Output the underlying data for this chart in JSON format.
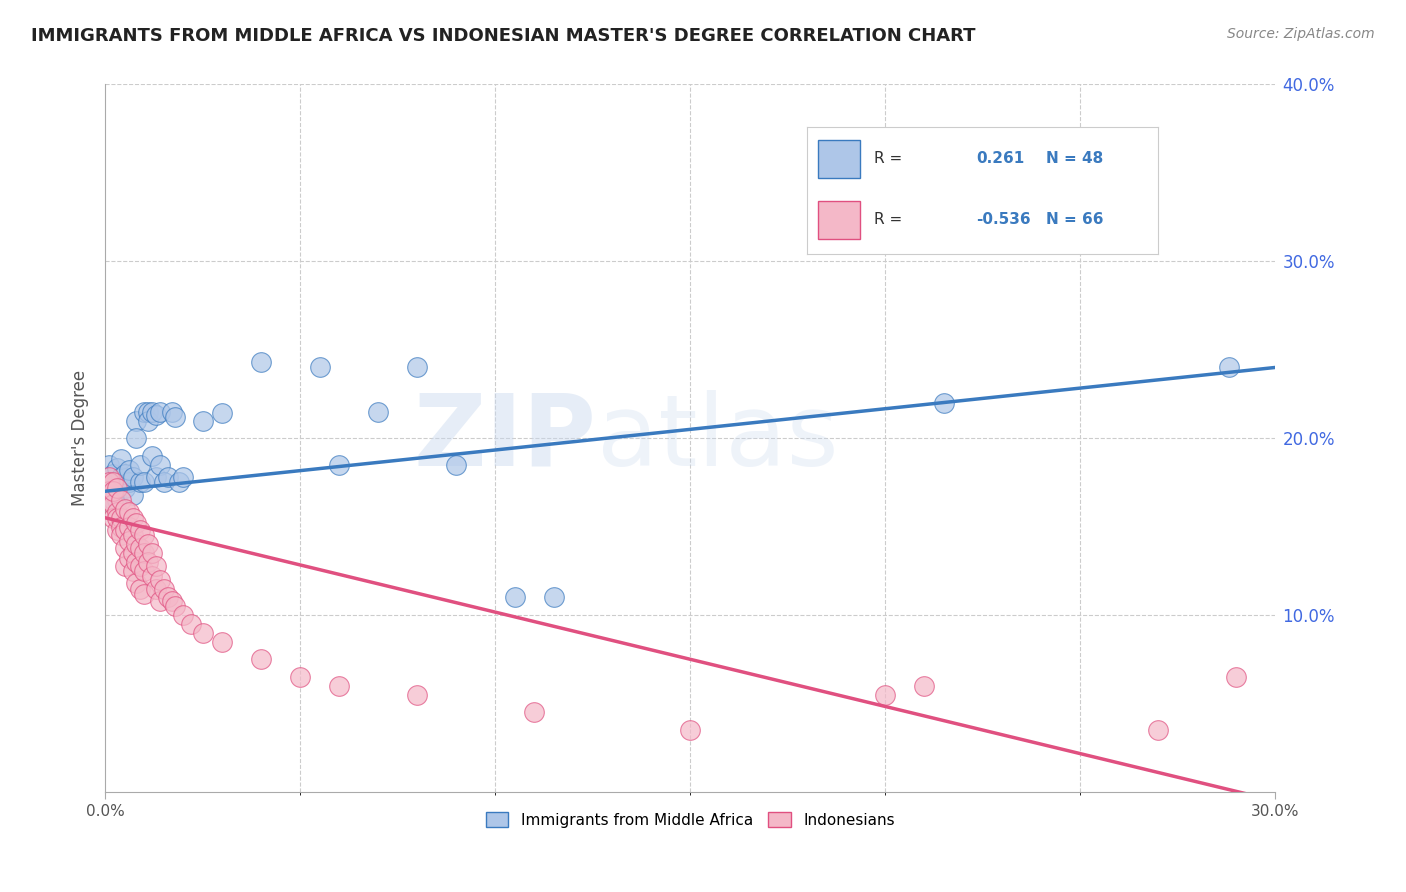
{
  "title": "IMMIGRANTS FROM MIDDLE AFRICA VS INDONESIAN MASTER'S DEGREE CORRELATION CHART",
  "source": "Source: ZipAtlas.com",
  "ylabel": "Master's Degree",
  "xlim": [
    0.0,
    0.3
  ],
  "ylim": [
    0.0,
    0.4
  ],
  "xtick_labels": [
    "0.0%",
    "",
    "",
    "",
    "",
    "",
    "",
    "",
    "",
    "",
    "",
    "",
    "",
    "",
    "",
    "",
    "",
    "",
    "",
    "",
    "",
    "",
    "",
    "",
    "",
    "",
    "",
    "",
    "",
    "",
    "30.0%"
  ],
  "xtick_values": [
    0.0,
    0.01,
    0.02,
    0.03,
    0.04,
    0.05,
    0.06,
    0.07,
    0.08,
    0.09,
    0.1,
    0.11,
    0.12,
    0.13,
    0.14,
    0.15,
    0.16,
    0.17,
    0.18,
    0.19,
    0.2,
    0.21,
    0.22,
    0.23,
    0.24,
    0.25,
    0.26,
    0.27,
    0.28,
    0.29,
    0.3
  ],
  "ytick_labels": [
    "10.0%",
    "20.0%",
    "30.0%",
    "40.0%"
  ],
  "ytick_values": [
    0.1,
    0.2,
    0.3,
    0.4
  ],
  "color_blue": "#aec6e8",
  "color_pink": "#f4b8c8",
  "line_blue": "#3a7abf",
  "line_pink": "#e05080",
  "R_blue": 0.261,
  "N_blue": 48,
  "R_pink": -0.536,
  "N_pink": 66,
  "watermark": "ZIPAtlas",
  "legend_labels": [
    "Immigrants from Middle Africa",
    "Indonesians"
  ],
  "blue_scatter": [
    [
      0.001,
      0.175
    ],
    [
      0.001,
      0.185
    ],
    [
      0.002,
      0.18
    ],
    [
      0.002,
      0.17
    ],
    [
      0.002,
      0.165
    ],
    [
      0.003,
      0.175
    ],
    [
      0.003,
      0.183
    ],
    [
      0.003,
      0.165
    ],
    [
      0.004,
      0.178
    ],
    [
      0.004,
      0.188
    ],
    [
      0.005,
      0.172
    ],
    [
      0.005,
      0.18
    ],
    [
      0.006,
      0.175
    ],
    [
      0.006,
      0.182
    ],
    [
      0.007,
      0.178
    ],
    [
      0.007,
      0.168
    ],
    [
      0.008,
      0.21
    ],
    [
      0.008,
      0.2
    ],
    [
      0.009,
      0.175
    ],
    [
      0.009,
      0.185
    ],
    [
      0.01,
      0.215
    ],
    [
      0.01,
      0.175
    ],
    [
      0.011,
      0.215
    ],
    [
      0.011,
      0.21
    ],
    [
      0.012,
      0.19
    ],
    [
      0.012,
      0.215
    ],
    [
      0.013,
      0.213
    ],
    [
      0.013,
      0.178
    ],
    [
      0.014,
      0.215
    ],
    [
      0.014,
      0.185
    ],
    [
      0.015,
      0.175
    ],
    [
      0.016,
      0.178
    ],
    [
      0.017,
      0.215
    ],
    [
      0.018,
      0.212
    ],
    [
      0.019,
      0.175
    ],
    [
      0.02,
      0.178
    ],
    [
      0.025,
      0.21
    ],
    [
      0.03,
      0.214
    ],
    [
      0.04,
      0.243
    ],
    [
      0.055,
      0.24
    ],
    [
      0.06,
      0.185
    ],
    [
      0.07,
      0.215
    ],
    [
      0.08,
      0.24
    ],
    [
      0.09,
      0.185
    ],
    [
      0.105,
      0.11
    ],
    [
      0.115,
      0.11
    ],
    [
      0.215,
      0.22
    ],
    [
      0.288,
      0.24
    ]
  ],
  "pink_scatter": [
    [
      0.001,
      0.178
    ],
    [
      0.001,
      0.175
    ],
    [
      0.001,
      0.17
    ],
    [
      0.001,
      0.165
    ],
    [
      0.002,
      0.175
    ],
    [
      0.002,
      0.163
    ],
    [
      0.002,
      0.17
    ],
    [
      0.002,
      0.155
    ],
    [
      0.003,
      0.172
    ],
    [
      0.003,
      0.158
    ],
    [
      0.003,
      0.148
    ],
    [
      0.003,
      0.155
    ],
    [
      0.004,
      0.165
    ],
    [
      0.004,
      0.155
    ],
    [
      0.004,
      0.15
    ],
    [
      0.004,
      0.145
    ],
    [
      0.005,
      0.16
    ],
    [
      0.005,
      0.148
    ],
    [
      0.005,
      0.138
    ],
    [
      0.005,
      0.128
    ],
    [
      0.006,
      0.158
    ],
    [
      0.006,
      0.15
    ],
    [
      0.006,
      0.142
    ],
    [
      0.006,
      0.132
    ],
    [
      0.007,
      0.155
    ],
    [
      0.007,
      0.145
    ],
    [
      0.007,
      0.135
    ],
    [
      0.007,
      0.125
    ],
    [
      0.008,
      0.152
    ],
    [
      0.008,
      0.14
    ],
    [
      0.008,
      0.13
    ],
    [
      0.008,
      0.118
    ],
    [
      0.009,
      0.148
    ],
    [
      0.009,
      0.138
    ],
    [
      0.009,
      0.128
    ],
    [
      0.009,
      0.115
    ],
    [
      0.01,
      0.145
    ],
    [
      0.01,
      0.135
    ],
    [
      0.01,
      0.125
    ],
    [
      0.01,
      0.112
    ],
    [
      0.011,
      0.14
    ],
    [
      0.011,
      0.13
    ],
    [
      0.012,
      0.135
    ],
    [
      0.012,
      0.122
    ],
    [
      0.013,
      0.128
    ],
    [
      0.013,
      0.115
    ],
    [
      0.014,
      0.12
    ],
    [
      0.014,
      0.108
    ],
    [
      0.015,
      0.115
    ],
    [
      0.016,
      0.11
    ],
    [
      0.017,
      0.108
    ],
    [
      0.018,
      0.105
    ],
    [
      0.02,
      0.1
    ],
    [
      0.022,
      0.095
    ],
    [
      0.025,
      0.09
    ],
    [
      0.03,
      0.085
    ],
    [
      0.04,
      0.075
    ],
    [
      0.05,
      0.065
    ],
    [
      0.06,
      0.06
    ],
    [
      0.08,
      0.055
    ],
    [
      0.11,
      0.045
    ],
    [
      0.15,
      0.035
    ],
    [
      0.2,
      0.055
    ],
    [
      0.21,
      0.06
    ],
    [
      0.27,
      0.035
    ],
    [
      0.29,
      0.065
    ]
  ]
}
